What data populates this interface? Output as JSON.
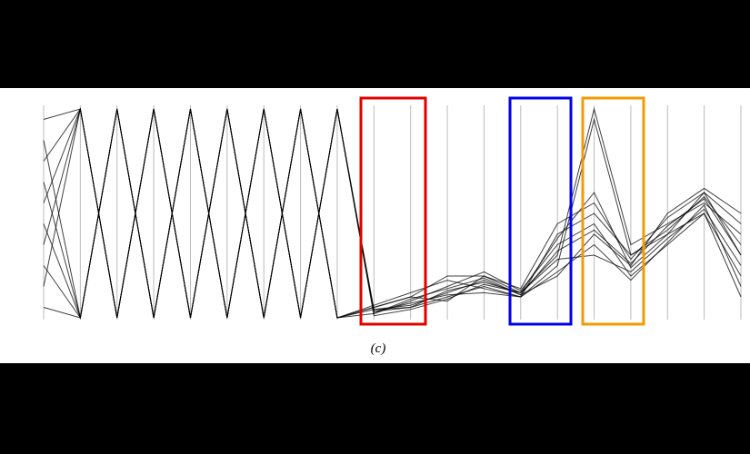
{
  "chart_data": {
    "type": "parallel",
    "caption": "(c)",
    "ylim": [
      0,
      1
    ],
    "color": "#000000",
    "series": [
      {
        "values": [
          0.95,
          1,
          0,
          1,
          0,
          1,
          0,
          1,
          0,
          0.05,
          0.1,
          0.08,
          0.2,
          0.12,
          0.3,
          1,
          0.35,
          0.45,
          0.55,
          0.4
        ]
      },
      {
        "values": [
          0.85,
          0,
          1,
          0,
          1,
          0,
          1,
          0,
          1,
          0.03,
          0.05,
          0.1,
          0.15,
          0.1,
          0.25,
          0.95,
          0.3,
          0.4,
          0.6,
          0.3
        ]
      },
      {
        "values": [
          0.75,
          1,
          0,
          1,
          0,
          1,
          0,
          1,
          0,
          0.04,
          0.06,
          0.12,
          0.18,
          0.11,
          0.2,
          0.4,
          0.25,
          0.5,
          0.62,
          0.5
        ]
      },
      {
        "values": [
          0.65,
          0,
          1,
          0,
          1,
          0,
          1,
          0,
          1,
          0.02,
          0.08,
          0.15,
          0.22,
          0.13,
          0.35,
          0.45,
          0.2,
          0.35,
          0.5,
          0.2
        ]
      },
      {
        "values": [
          0.55,
          1,
          0,
          1,
          0,
          1,
          0,
          1,
          0,
          0.06,
          0.12,
          0.18,
          0.14,
          0.1,
          0.4,
          0.5,
          0.3,
          0.42,
          0.58,
          0.35
        ]
      },
      {
        "values": [
          0.45,
          0,
          1,
          0,
          1,
          0,
          1,
          0,
          1,
          0.01,
          0.04,
          0.09,
          0.16,
          0.12,
          0.28,
          0.3,
          0.22,
          0.38,
          0.52,
          0.25
        ]
      },
      {
        "values": [
          0.35,
          1,
          0,
          1,
          0,
          1,
          0,
          1,
          0,
          0.05,
          0.1,
          0.2,
          0.2,
          0.14,
          0.45,
          0.55,
          0.28,
          0.48,
          0.6,
          0.45
        ]
      },
      {
        "values": [
          0.25,
          0,
          1,
          0,
          1,
          0,
          1,
          0,
          1,
          0.03,
          0.07,
          0.11,
          0.12,
          0.1,
          0.22,
          0.35,
          0.18,
          0.36,
          0.54,
          0.15
        ]
      },
      {
        "values": [
          0.15,
          1,
          0,
          1,
          0,
          1,
          0,
          1,
          0,
          0.02,
          0.09,
          0.14,
          0.19,
          0.11,
          0.32,
          0.42,
          0.26,
          0.44,
          0.57,
          0.3
        ]
      },
      {
        "values": [
          0.05,
          0,
          1,
          0,
          1,
          0,
          1,
          0,
          1,
          0.04,
          0.05,
          0.13,
          0.17,
          0.12,
          0.38,
          0.6,
          0.24,
          0.4,
          0.5,
          0.1
        ]
      }
    ]
  }
}
